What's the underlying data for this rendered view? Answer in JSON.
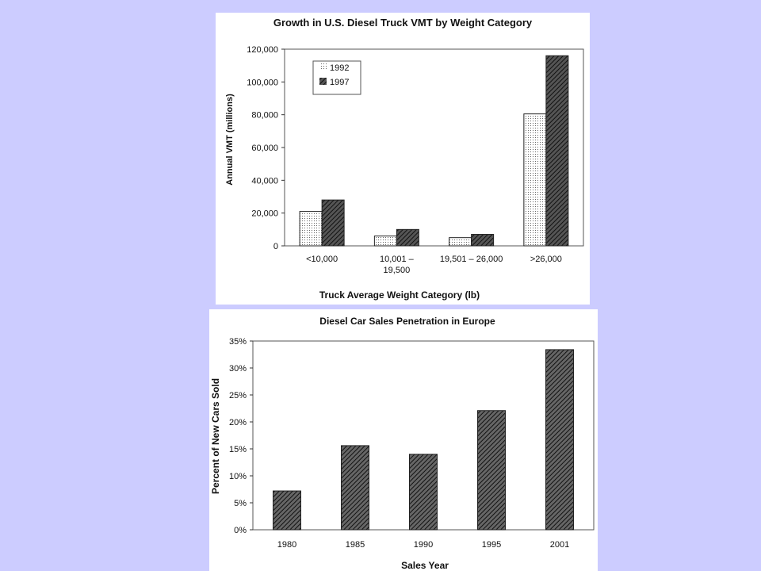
{
  "colors": {
    "background": "#ccccff",
    "panel": "#ffffff",
    "ink": "#111111"
  },
  "chart_data": [
    {
      "type": "bar",
      "title": "Growth in U.S. Diesel Truck VMT by Weight Category",
      "xlabel": "Truck Average Weight Category (lb)",
      "ylabel": "Annual VMT (millions)",
      "categories": [
        [
          "<10,000"
        ],
        [
          "10,001 –",
          "19,500"
        ],
        [
          "19,501  –  26,000"
        ],
        [
          ">26,000"
        ]
      ],
      "series": [
        {
          "name": "1992",
          "values": [
            21000,
            6000,
            5000,
            80500
          ],
          "pattern": "dots"
        },
        {
          "name": "1997",
          "values": [
            28000,
            10000,
            7000,
            116000
          ],
          "pattern": "hatch"
        }
      ],
      "ylim": [
        0,
        120000
      ],
      "yticks": [
        0,
        20000,
        40000,
        60000,
        80000,
        100000,
        120000
      ],
      "ytick_labels": [
        "0",
        "20,000",
        "40,000",
        "60,000",
        "80,000",
        "100,000",
        "120,000"
      ],
      "grid": false,
      "legend_position": "top-left"
    },
    {
      "type": "bar",
      "title": "Diesel Car Sales Penetration in Europe",
      "xlabel": "Sales Year",
      "ylabel": "Percent of New Cars Sold",
      "categories": [
        "1980",
        "1985",
        "1990",
        "1995",
        "2001"
      ],
      "values": [
        7.2,
        15.6,
        14.0,
        22.1,
        33.4
      ],
      "ylim": [
        0,
        35
      ],
      "yticks": [
        0,
        5,
        10,
        15,
        20,
        25,
        30,
        35
      ],
      "ytick_labels": [
        "0%",
        "5%",
        "10%",
        "15%",
        "20%",
        "25%",
        "30%",
        "35%"
      ],
      "grid": false
    }
  ]
}
